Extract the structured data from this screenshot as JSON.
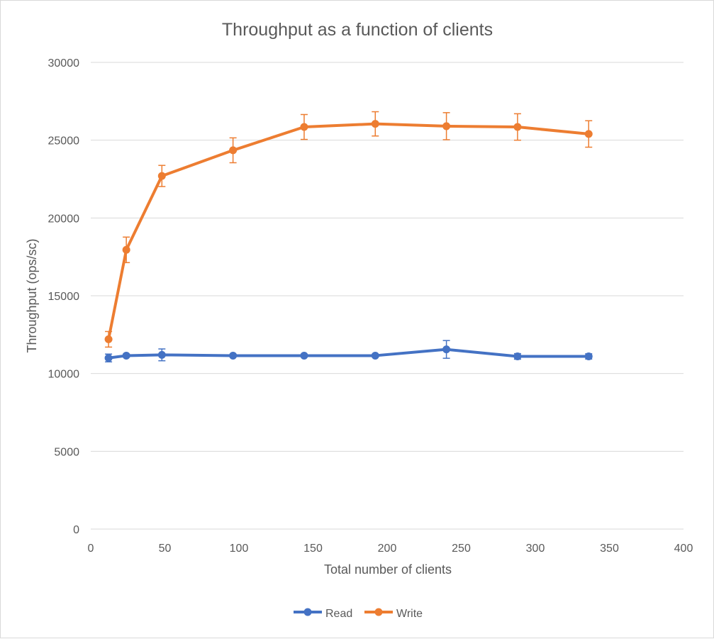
{
  "chart_data": {
    "type": "line",
    "title": "Throughput as a function of clients",
    "xlabel": "Total number of clients",
    "ylabel": "Throughput (ops/sc)",
    "xlim": [
      0,
      400
    ],
    "ylim": [
      0,
      30000
    ],
    "xticks": [
      0,
      50,
      100,
      150,
      200,
      250,
      300,
      350,
      400
    ],
    "yticks": [
      0,
      5000,
      10000,
      15000,
      20000,
      25000,
      30000
    ],
    "grid": "horizontal",
    "legend_position": "bottom",
    "series": [
      {
        "name": "Read",
        "color": "#4472c4",
        "points": [
          {
            "x": 12,
            "y": 11000,
            "err": 250
          },
          {
            "x": 24,
            "y": 11150,
            "err": 100
          },
          {
            "x": 48,
            "y": 11200,
            "err": 380
          },
          {
            "x": 96,
            "y": 11150,
            "err": 80
          },
          {
            "x": 144,
            "y": 11150,
            "err": 80
          },
          {
            "x": 192,
            "y": 11150,
            "err": 80
          },
          {
            "x": 240,
            "y": 11550,
            "err": 570
          },
          {
            "x": 288,
            "y": 11100,
            "err": 180
          },
          {
            "x": 336,
            "y": 11100,
            "err": 170
          }
        ]
      },
      {
        "name": "Write",
        "color": "#ed7d31",
        "points": [
          {
            "x": 12,
            "y": 12200,
            "err": 500
          },
          {
            "x": 24,
            "y": 17950,
            "err": 820
          },
          {
            "x": 48,
            "y": 22700,
            "err": 680
          },
          {
            "x": 96,
            "y": 24350,
            "err": 800
          },
          {
            "x": 144,
            "y": 25850,
            "err": 800
          },
          {
            "x": 192,
            "y": 26050,
            "err": 780
          },
          {
            "x": 240,
            "y": 25900,
            "err": 870
          },
          {
            "x": 288,
            "y": 25850,
            "err": 850
          },
          {
            "x": 336,
            "y": 25400,
            "err": 850
          }
        ]
      }
    ]
  }
}
